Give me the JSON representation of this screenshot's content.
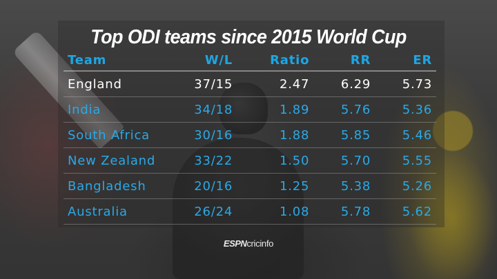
{
  "title": "Top ODI teams since 2015 World Cup",
  "columns": [
    "Team",
    "W/L",
    "Ratio",
    "RR",
    "ER"
  ],
  "rows": [
    {
      "team": "England",
      "wl": "37/15",
      "ratio": "2.47",
      "rr": "6.29",
      "er": "5.73",
      "highlight": true
    },
    {
      "team": "India",
      "wl": "34/18",
      "ratio": "1.89",
      "rr": "5.76",
      "er": "5.36",
      "highlight": false
    },
    {
      "team": "South Africa",
      "wl": "30/16",
      "ratio": "1.88",
      "rr": "5.85",
      "er": "5.46",
      "highlight": false
    },
    {
      "team": "New Zealand",
      "wl": "33/22",
      "ratio": "1.50",
      "rr": "5.70",
      "er": "5.55",
      "highlight": false
    },
    {
      "team": "Bangladesh",
      "wl": "20/16",
      "ratio": "1.25",
      "rr": "5.38",
      "er": "5.26",
      "highlight": false
    },
    {
      "team": "Australia",
      "wl": "26/24",
      "ratio": "1.08",
      "rr": "5.78",
      "er": "5.62",
      "highlight": false
    }
  ],
  "logo": {
    "espn": "ESPN",
    "cricinfo": "cricinfo"
  },
  "colors": {
    "header": "#1ea6e4",
    "highlight_row": "#ffffff",
    "rows": "#2aa9e6"
  }
}
